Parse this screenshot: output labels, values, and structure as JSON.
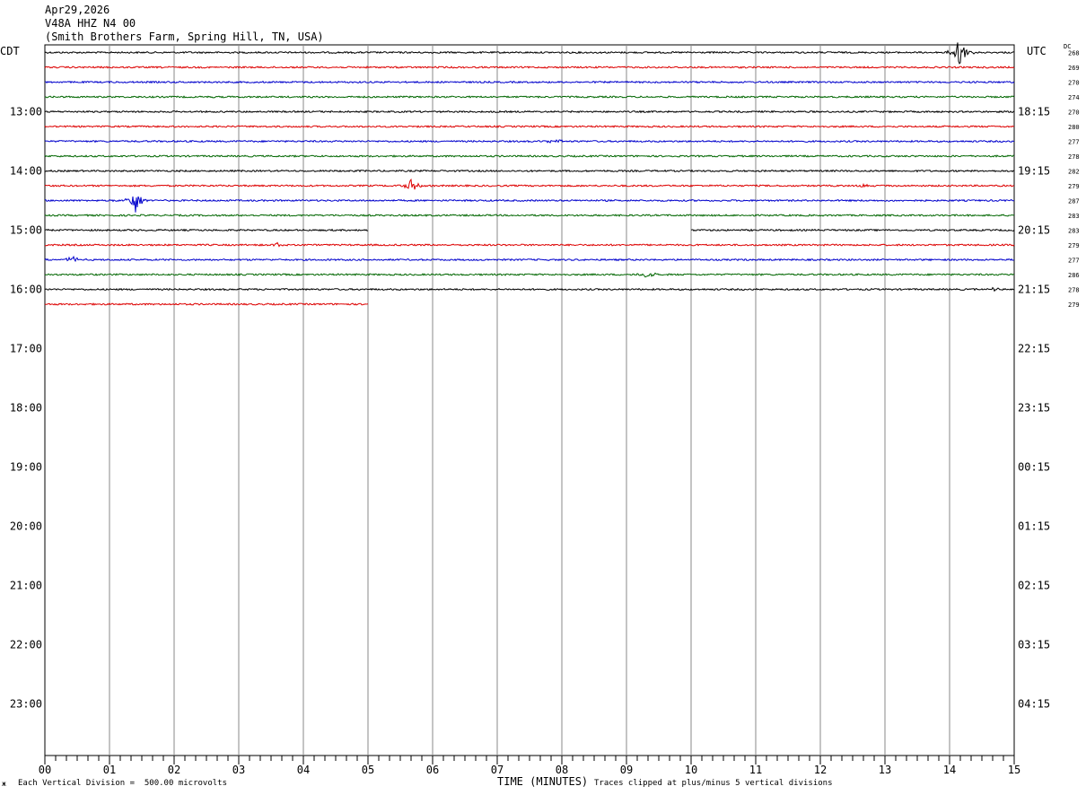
{
  "header": {
    "date": "Apr29,2026",
    "station": "V48A HHZ N4 00",
    "location": "(Smith Brothers Farm, Spring Hill, TN, USA)"
  },
  "labels": {
    "left_tz": "CDT",
    "right_tz": "UTC",
    "dc_header": "DC"
  },
  "footer": {
    "scale_note": "Each Vertical Division =  500.00 microvolts",
    "xlabel": "TIME (MINUTES)",
    "clip_note": "Traces clipped at plus/minus 5 vertical divisions",
    "corner_mark": "ж"
  },
  "colors": {
    "trace_cycle": [
      "#000000",
      "#dd0000",
      "#0000cc",
      "#006600"
    ],
    "gridline": "#888888"
  },
  "chart_data": {
    "type": "line",
    "title": "",
    "xlabel": "TIME (MINUTES)",
    "ylabel": "",
    "xlim": [
      0,
      15
    ],
    "x_ticks": [
      "00",
      "01",
      "02",
      "03",
      "04",
      "05",
      "06",
      "07",
      "08",
      "09",
      "10",
      "11",
      "12",
      "13",
      "14",
      "15"
    ],
    "hour_labels_left": [
      "13:00",
      "14:00",
      "15:00",
      "16:00",
      "17:00",
      "18:00",
      "19:00",
      "20:00",
      "21:00",
      "22:00",
      "23:00"
    ],
    "hour_labels_right": [
      "18:15",
      "19:15",
      "20:15",
      "21:15",
      "22:15",
      "23:15",
      "00:15",
      "01:15",
      "02:15",
      "03:15",
      "04:15"
    ],
    "traces_per_hour": 4,
    "grid": true,
    "series": [
      {
        "dc": "268",
        "x_range": [
          0,
          15
        ],
        "events": [
          {
            "minute": 14.15,
            "amp": 4.5
          }
        ]
      },
      {
        "dc": "269",
        "x_range": [
          0,
          15
        ],
        "events": []
      },
      {
        "dc": "270",
        "x_range": [
          0,
          15
        ],
        "events": []
      },
      {
        "dc": "274",
        "x_range": [
          0,
          15
        ],
        "events": []
      },
      {
        "dc": "270",
        "x_range": [
          0,
          15
        ],
        "events": []
      },
      {
        "dc": "280",
        "x_range": [
          0,
          15
        ],
        "events": []
      },
      {
        "dc": "277",
        "x_range": [
          0,
          15
        ],
        "events": [
          {
            "minute": 7.9,
            "amp": 0.8
          }
        ]
      },
      {
        "dc": "278",
        "x_range": [
          0,
          15
        ],
        "events": []
      },
      {
        "dc": "282",
        "x_range": [
          0,
          15
        ],
        "events": []
      },
      {
        "dc": "279",
        "x_range": [
          0,
          15
        ],
        "events": [
          {
            "minute": 5.68,
            "amp": 2.0
          },
          {
            "minute": 12.65,
            "amp": 0.6
          }
        ]
      },
      {
        "dc": "287",
        "x_range": [
          0,
          15
        ],
        "events": [
          {
            "minute": 1.4,
            "amp": 3.8
          }
        ]
      },
      {
        "dc": "283",
        "x_range": [
          0,
          15
        ],
        "events": []
      },
      {
        "dc": "283",
        "x_range": [
          0,
          5
        ],
        "x_range2": [
          10,
          15
        ],
        "events": []
      },
      {
        "dc": "279",
        "x_range": [
          0,
          15
        ],
        "events": [
          {
            "minute": 3.6,
            "amp": 0.6
          }
        ]
      },
      {
        "dc": "277",
        "x_range": [
          0,
          15
        ],
        "events": [
          {
            "minute": 0.45,
            "amp": 1.2
          }
        ]
      },
      {
        "dc": "286",
        "x_range": [
          0,
          15
        ],
        "events": [
          {
            "minute": 9.32,
            "amp": 1.4
          }
        ]
      },
      {
        "dc": "278",
        "x_range": [
          0,
          15
        ],
        "events": [
          {
            "minute": 14.7,
            "amp": 0.6
          }
        ]
      },
      {
        "dc": "279",
        "x_range": [
          0,
          5
        ],
        "events": []
      }
    ]
  }
}
